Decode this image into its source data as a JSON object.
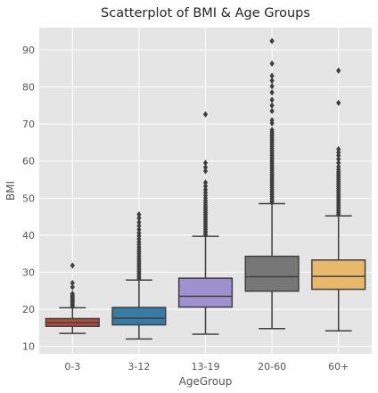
{
  "chart_data": {
    "type": "box",
    "title": "Scatterplot of BMI & Age Groups",
    "xlabel": "AgeGroup",
    "ylabel": "BMI",
    "ylim": [
      8,
      96
    ],
    "yticks": [
      10,
      20,
      30,
      40,
      50,
      60,
      70,
      80,
      90
    ],
    "grid": true,
    "legend": "none",
    "categories": [
      "0-3",
      "3-12",
      "13-19",
      "20-60",
      "60+"
    ],
    "boxes": [
      {
        "category": "0-3",
        "color": "#b04d3f",
        "whisker_low": 13.5,
        "q1": 15.4,
        "median": 16.4,
        "q3": 17.5,
        "whisker_high": 20.4,
        "outliers": [
          20.8,
          21.1,
          21.4,
          21.7,
          22.0,
          22.3,
          22.6,
          22.9,
          23.2,
          23.5,
          23.8,
          24.2,
          26.0,
          27.1,
          31.8
        ]
      },
      {
        "category": "3-12",
        "color": "#357ba3",
        "whisker_low": 12.0,
        "q1": 15.8,
        "median": 17.6,
        "q3": 20.5,
        "whisker_high": 27.9,
        "outliers": [
          28.3,
          28.8,
          29.3,
          29.8,
          30.3,
          30.8,
          31.3,
          31.8,
          32.3,
          32.8,
          33.3,
          33.8,
          34.4,
          35.0,
          35.6,
          36.2,
          36.8,
          37.5,
          38.2,
          39.0,
          39.8,
          40.6,
          41.5,
          42.5,
          43.5,
          44.6,
          45.6
        ]
      },
      {
        "category": "13-19",
        "color": "#9d91d0",
        "whisker_low": 13.3,
        "q1": 20.6,
        "median": 23.5,
        "q3": 28.4,
        "whisker_high": 39.7,
        "outliers": [
          40.1,
          40.6,
          41.1,
          41.6,
          42.1,
          42.6,
          43.1,
          43.6,
          44.1,
          44.6,
          45.1,
          45.6,
          46.1,
          46.6,
          47.1,
          47.6,
          48.1,
          48.7,
          49.3,
          50.0,
          50.7,
          51.5,
          52.3,
          53.2,
          54.2,
          57.3,
          58.3,
          59.5,
          72.6
        ]
      },
      {
        "category": "20-60",
        "color": "#777777",
        "whisker_low": 14.8,
        "q1": 24.9,
        "median": 28.8,
        "q3": 34.3,
        "whisker_high": 48.5,
        "outliers": [
          48.9,
          49.4,
          49.9,
          50.4,
          50.9,
          51.4,
          51.9,
          52.4,
          52.9,
          53.4,
          53.9,
          54.4,
          54.9,
          55.4,
          55.9,
          56.4,
          56.9,
          57.4,
          57.9,
          58.4,
          58.9,
          59.4,
          59.9,
          60.4,
          60.9,
          61.4,
          61.9,
          62.4,
          62.9,
          63.4,
          63.9,
          64.4,
          64.9,
          65.4,
          65.9,
          66.4,
          66.9,
          67.4,
          67.9,
          68.4,
          70.2,
          71.0,
          73.5,
          75.0,
          76.5,
          78.5,
          80.2,
          81.7,
          83.0,
          86.3,
          92.4
        ]
      },
      {
        "category": "60+",
        "color": "#e9b96b",
        "whisker_low": 14.2,
        "q1": 25.4,
        "median": 28.9,
        "q3": 33.3,
        "whisker_high": 45.2,
        "outliers": [
          45.6,
          46.1,
          46.6,
          47.1,
          47.6,
          48.1,
          48.6,
          49.1,
          49.6,
          50.1,
          50.6,
          51.1,
          51.6,
          52.1,
          52.6,
          53.1,
          53.6,
          54.1,
          54.6,
          55.1,
          55.6,
          56.1,
          56.6,
          57.1,
          57.7,
          58.5,
          59.5,
          60.5,
          61.5,
          62.3,
          63.2,
          75.7,
          84.4
        ]
      }
    ]
  },
  "colors": {
    "plot_background": "#e5e5e5",
    "grid": "#ffffff",
    "edge": "#3f3f3f"
  }
}
